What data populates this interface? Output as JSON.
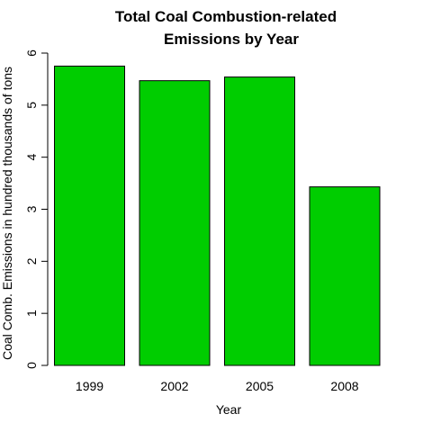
{
  "chart_data": {
    "type": "bar",
    "title": "Total Coal Combustion-related",
    "subtitle": "Emissions by Year",
    "xlabel": "Year",
    "ylabel": "Coal Comb. Emissions in hundred thousands of tons",
    "categories": [
      "1999",
      "2002",
      "2005",
      "2008"
    ],
    "values": [
      5.75,
      5.47,
      5.54,
      3.43
    ],
    "ylim": [
      0,
      6
    ],
    "yticks": [
      "0",
      "1",
      "2",
      "3",
      "4",
      "5",
      "6"
    ],
    "grid": false,
    "legend": "none",
    "bar_color": "#00CD00",
    "bar_border_color": "#000000"
  }
}
